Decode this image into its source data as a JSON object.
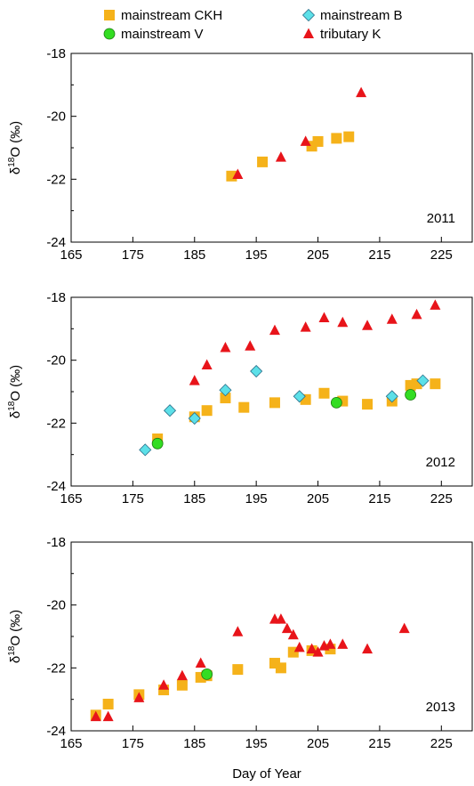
{
  "colors": {
    "mainstream_CKH": "#F5B21A",
    "mainstream_B": "#5CE0E8",
    "mainstream_V": "#33DD22",
    "tributary_K": "#E8141A",
    "axis": "#000000"
  },
  "legend": [
    {
      "key": "mainstream_CKH",
      "label": "mainstream CKH",
      "marker": "square"
    },
    {
      "key": "mainstream_B",
      "label": "mainstream B",
      "marker": "diamond"
    },
    {
      "key": "mainstream_V",
      "label": "mainstream V",
      "marker": "circle"
    },
    {
      "key": "tributary_K",
      "label": "tributary K",
      "marker": "triangle"
    }
  ],
  "axes": {
    "ylabel_prefix": "δ",
    "ylabel_sup": "18",
    "ylabel_suffix": "O (‰)",
    "xlabel": "Day of Year",
    "xlim": [
      165,
      230
    ],
    "ylim": [
      -24,
      -18
    ],
    "xticks": [
      165,
      175,
      185,
      195,
      205,
      215,
      225
    ],
    "yticks": [
      -18,
      -20,
      -22,
      -24
    ]
  },
  "chart_data": [
    {
      "type": "scatter",
      "panel_label": "2011",
      "series": [
        {
          "name": "mainstream CKH",
          "marker": "square",
          "points": [
            [
              191,
              -21.9
            ],
            [
              196,
              -21.45
            ],
            [
              204,
              -20.95
            ],
            [
              205,
              -20.8
            ],
            [
              208,
              -20.7
            ],
            [
              210,
              -20.65
            ]
          ]
        },
        {
          "name": "mainstream B",
          "marker": "diamond",
          "points": []
        },
        {
          "name": "mainstream V",
          "marker": "circle",
          "points": []
        },
        {
          "name": "tributary K",
          "marker": "triangle",
          "points": [
            [
              192,
              -21.85
            ],
            [
              199,
              -21.3
            ],
            [
              203,
              -20.8
            ],
            [
              212,
              -19.25
            ]
          ]
        }
      ]
    },
    {
      "type": "scatter",
      "panel_label": "2012",
      "series": [
        {
          "name": "mainstream CKH",
          "marker": "square",
          "points": [
            [
              179,
              -22.5
            ],
            [
              185,
              -21.8
            ],
            [
              187,
              -21.6
            ],
            [
              190,
              -21.2
            ],
            [
              193,
              -21.5
            ],
            [
              198,
              -21.35
            ],
            [
              203,
              -21.25
            ],
            [
              206,
              -21.05
            ],
            [
              209,
              -21.3
            ],
            [
              213,
              -21.4
            ],
            [
              217,
              -21.3
            ],
            [
              220,
              -20.8
            ],
            [
              221,
              -20.75
            ],
            [
              224,
              -20.75
            ]
          ]
        },
        {
          "name": "mainstream B",
          "marker": "diamond",
          "points": [
            [
              177,
              -22.85
            ],
            [
              181,
              -21.6
            ],
            [
              185,
              -21.85
            ],
            [
              190,
              -20.95
            ],
            [
              195,
              -20.35
            ],
            [
              202,
              -21.15
            ],
            [
              217,
              -21.15
            ],
            [
              222,
              -20.65
            ]
          ]
        },
        {
          "name": "mainstream V",
          "marker": "circle",
          "points": [
            [
              179,
              -22.65
            ],
            [
              208,
              -21.35
            ],
            [
              220,
              -21.1
            ]
          ]
        },
        {
          "name": "tributary K",
          "marker": "triangle",
          "points": [
            [
              185,
              -20.65
            ],
            [
              187,
              -20.15
            ],
            [
              190,
              -19.6
            ],
            [
              194,
              -19.55
            ],
            [
              198,
              -19.05
            ],
            [
              203,
              -18.95
            ],
            [
              206,
              -18.65
            ],
            [
              209,
              -18.8
            ],
            [
              213,
              -18.9
            ],
            [
              217,
              -18.7
            ],
            [
              221,
              -18.55
            ],
            [
              224,
              -18.25
            ]
          ]
        }
      ]
    },
    {
      "type": "scatter",
      "panel_label": "2013",
      "series": [
        {
          "name": "mainstream CKH",
          "marker": "square",
          "points": [
            [
              169,
              -23.5
            ],
            [
              171,
              -23.15
            ],
            [
              176,
              -22.85
            ],
            [
              180,
              -22.7
            ],
            [
              183,
              -22.55
            ],
            [
              186,
              -22.3
            ],
            [
              187,
              -22.25
            ],
            [
              192,
              -22.05
            ],
            [
              198,
              -21.85
            ],
            [
              199,
              -22.0
            ],
            [
              201,
              -21.5
            ],
            [
              204,
              -21.45
            ],
            [
              207,
              -21.4
            ]
          ]
        },
        {
          "name": "mainstream B",
          "marker": "diamond",
          "points": []
        },
        {
          "name": "mainstream V",
          "marker": "circle",
          "points": [
            [
              187,
              -22.2
            ]
          ]
        },
        {
          "name": "tributary K",
          "marker": "triangle",
          "points": [
            [
              169,
              -23.55
            ],
            [
              171,
              -23.55
            ],
            [
              176,
              -22.95
            ],
            [
              180,
              -22.55
            ],
            [
              183,
              -22.25
            ],
            [
              186,
              -21.85
            ],
            [
              192,
              -20.85
            ],
            [
              198,
              -20.45
            ],
            [
              199,
              -20.45
            ],
            [
              200,
              -20.75
            ],
            [
              201,
              -20.95
            ],
            [
              202,
              -21.35
            ],
            [
              204,
              -21.4
            ],
            [
              205,
              -21.5
            ],
            [
              206,
              -21.3
            ],
            [
              207,
              -21.25
            ],
            [
              209,
              -21.25
            ],
            [
              213,
              -21.4
            ],
            [
              219,
              -20.75
            ]
          ]
        }
      ]
    }
  ]
}
